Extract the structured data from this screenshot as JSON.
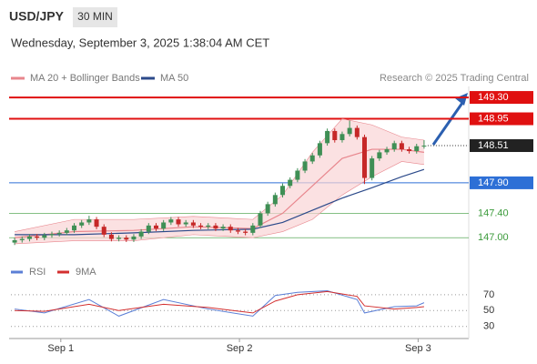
{
  "header": {
    "pair": "USD/JPY",
    "timeframe": "30 MIN",
    "datetime": "Wednesday, September 3, 2025 1:38:04 AM CET",
    "credit": "Research © 2025 Trading Central"
  },
  "chart_data": [
    {
      "type": "candlestick",
      "x": [
        0,
        1,
        2,
        3,
        4,
        5,
        6,
        7,
        8,
        9,
        10,
        11,
        12,
        13,
        14,
        15,
        16,
        17,
        18,
        19,
        20,
        21,
        22,
        23,
        24,
        25,
        26,
        27,
        28,
        29,
        30,
        31,
        32,
        33,
        34,
        35,
        36,
        37,
        38,
        39,
        40,
        41,
        42,
        43,
        44,
        45,
        46,
        47,
        48,
        49,
        50,
        51,
        52,
        53,
        54,
        55
      ],
      "open": [
        146.92,
        146.96,
        146.98,
        147.02,
        147.0,
        147.04,
        147.06,
        147.08,
        147.12,
        147.2,
        147.25,
        147.3,
        147.18,
        147.05,
        146.98,
        147.0,
        146.97,
        147.02,
        147.1,
        147.2,
        147.15,
        147.25,
        147.3,
        147.22,
        147.25,
        147.2,
        147.18,
        147.2,
        147.15,
        147.18,
        147.12,
        147.1,
        147.08,
        147.2,
        147.4,
        147.55,
        147.7,
        147.85,
        147.95,
        148.1,
        148.25,
        148.35,
        148.55,
        148.75,
        148.6,
        148.7,
        148.8,
        148.65,
        147.98,
        148.3,
        148.4,
        148.45,
        148.55,
        148.45,
        148.42,
        148.5
      ],
      "high": [
        147.0,
        147.02,
        147.06,
        147.06,
        147.08,
        147.1,
        147.12,
        147.16,
        147.24,
        147.29,
        147.36,
        147.34,
        147.22,
        147.09,
        147.04,
        147.04,
        147.06,
        147.14,
        147.24,
        147.24,
        147.29,
        147.34,
        147.34,
        147.29,
        147.29,
        147.24,
        147.24,
        147.24,
        147.22,
        147.22,
        147.16,
        147.14,
        147.24,
        147.44,
        147.59,
        147.74,
        147.89,
        147.99,
        148.14,
        148.29,
        148.39,
        148.59,
        148.79,
        148.79,
        148.74,
        148.92,
        148.84,
        148.69,
        148.34,
        148.44,
        148.49,
        148.59,
        148.59,
        148.49,
        148.54,
        148.6
      ],
      "low": [
        146.88,
        146.92,
        146.94,
        146.96,
        146.96,
        147.0,
        147.02,
        147.04,
        147.08,
        147.16,
        147.21,
        147.14,
        147.01,
        146.94,
        146.94,
        146.93,
        146.93,
        146.98,
        147.06,
        147.11,
        147.11,
        147.21,
        147.18,
        147.18,
        147.16,
        147.14,
        147.14,
        147.11,
        147.11,
        147.08,
        147.06,
        147.04,
        147.04,
        147.16,
        147.36,
        147.51,
        147.66,
        147.81,
        147.91,
        148.06,
        148.21,
        148.31,
        148.51,
        148.56,
        148.56,
        148.66,
        148.61,
        147.88,
        147.94,
        148.26,
        148.36,
        148.41,
        148.41,
        148.38,
        148.38,
        148.46
      ],
      "close": [
        146.96,
        146.98,
        147.02,
        147.0,
        147.04,
        147.06,
        147.08,
        147.12,
        147.2,
        147.25,
        147.3,
        147.18,
        147.05,
        146.98,
        147.0,
        146.97,
        147.02,
        147.1,
        147.2,
        147.15,
        147.25,
        147.3,
        147.22,
        147.25,
        147.2,
        147.18,
        147.2,
        147.15,
        147.18,
        147.12,
        147.1,
        147.08,
        147.2,
        147.4,
        147.55,
        147.7,
        147.85,
        147.95,
        148.1,
        148.25,
        148.35,
        148.55,
        148.75,
        148.6,
        148.7,
        148.8,
        148.65,
        147.98,
        148.3,
        148.4,
        148.45,
        148.55,
        148.45,
        148.42,
        148.5,
        148.51
      ],
      "up_color": "#3f8f55",
      "down_color": "#c62828",
      "xlim": [
        -0.5,
        61
      ],
      "ylim": [
        146.72,
        149.48
      ],
      "series": [
        {
          "name": "MA 20 + Bollinger Bands",
          "color": "#e8868d",
          "band_color": "#f9d4d6",
          "x": [
            0,
            8,
            16,
            24,
            32,
            36,
            40,
            44,
            48,
            52,
            55
          ],
          "values": [
            147.0,
            147.1,
            147.12,
            147.18,
            147.15,
            147.4,
            147.85,
            148.3,
            148.45,
            148.45,
            148.4
          ],
          "upper": [
            147.1,
            147.3,
            147.3,
            147.35,
            147.3,
            147.7,
            148.4,
            148.95,
            148.85,
            148.65,
            148.6
          ],
          "lower": [
            146.9,
            146.95,
            146.95,
            147.05,
            147.0,
            147.1,
            147.3,
            147.7,
            148.0,
            148.25,
            148.2
          ]
        },
        {
          "name": "MA 50",
          "color": "#2c4a8a",
          "x": [
            0,
            8,
            16,
            24,
            32,
            36,
            40,
            44,
            48,
            52,
            55
          ],
          "values": [
            147.05,
            147.05,
            147.08,
            147.12,
            147.14,
            147.25,
            147.45,
            147.65,
            147.82,
            148.0,
            148.12
          ]
        }
      ],
      "levels": [
        {
          "value": 149.3,
          "label": "149.30",
          "color": "#e01010",
          "style": "box"
        },
        {
          "value": 148.95,
          "label": "148.95",
          "color": "#e01010",
          "style": "box"
        },
        {
          "value": 148.51,
          "label": "148.51",
          "color": "#222222",
          "style": "last"
        },
        {
          "value": 147.9,
          "label": "147.90",
          "color": "#2d6fd6",
          "style": "box"
        },
        {
          "value": 147.4,
          "label": "147.40",
          "color": "#3a9a3a",
          "style": "text"
        },
        {
          "value": 147,
          "label": "147.00",
          "color": "#3a9a3a",
          "style": "text"
        }
      ]
    },
    {
      "type": "line",
      "xlim": [
        -0.5,
        61
      ],
      "ylim": [
        17,
        86
      ],
      "yticks": [
        70,
        50,
        30
      ],
      "xticks": [
        {
          "value": 6.2,
          "label": "Sep 1"
        },
        {
          "value": 30.2,
          "label": "Sep 2"
        },
        {
          "value": 54.2,
          "label": "Sep 3"
        }
      ],
      "series": [
        {
          "name": "RSI",
          "color": "#5b7fd6",
          "x": [
            0,
            4,
            10,
            14,
            20,
            26,
            32,
            35,
            38,
            42,
            46,
            47,
            51,
            54,
            55
          ],
          "values": [
            52,
            47,
            64,
            43,
            64,
            52,
            43,
            69,
            73,
            75,
            64,
            47,
            55,
            56,
            60
          ]
        },
        {
          "name": "9MA",
          "color": "#d32f2f",
          "x": [
            0,
            4,
            10,
            14,
            20,
            26,
            32,
            35,
            38,
            42,
            46,
            47,
            51,
            54,
            55
          ],
          "values": [
            50,
            49,
            58,
            50,
            58,
            54,
            47,
            62,
            70,
            74,
            68,
            56,
            52,
            54,
            55
          ]
        }
      ]
    }
  ]
}
